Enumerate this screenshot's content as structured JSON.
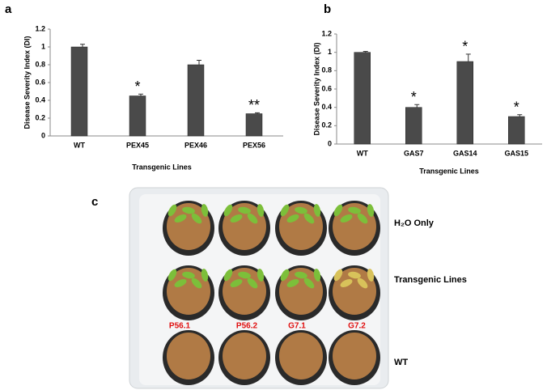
{
  "panels": [
    "a",
    "b",
    "c"
  ],
  "chart_data": [
    {
      "type": "bar",
      "y_label": "Disease Severity Index (DI)",
      "x_label": "Transgenic Lines",
      "categories": [
        "WT",
        "PEX45",
        "PEX46",
        "PEX56"
      ],
      "values": [
        1.0,
        0.45,
        0.8,
        0.25
      ],
      "errors": [
        0.03,
        0.02,
        0.05,
        0.01
      ],
      "annotations": [
        null,
        "*",
        null,
        "**"
      ],
      "color": "#4a4a4a",
      "ylim": [
        0,
        1.2
      ],
      "yticks": [
        0,
        0.2,
        0.4,
        0.6,
        0.8,
        1,
        1.2
      ]
    },
    {
      "type": "bar",
      "y_label": "Disease Severity Index (DI)",
      "x_label": "Transgenic Lines",
      "categories": [
        "WT",
        "GAS7",
        "GAS14",
        "GAS15"
      ],
      "values": [
        1.0,
        0.4,
        0.9,
        0.3
      ],
      "errors": [
        0.01,
        0.03,
        0.08,
        0.02
      ],
      "annotations": [
        null,
        "*",
        "*",
        "*"
      ],
      "color": "#4a4a4a",
      "ylim": [
        0,
        1.2
      ],
      "yticks": [
        0,
        0.2,
        0.4,
        0.6,
        0.8,
        1,
        1.2
      ]
    }
  ],
  "photo": {
    "row_labels": [
      "H₂O Only",
      "Transgenic Lines",
      "WT"
    ],
    "pot_labels": [
      "P56.1",
      "P56.2",
      "G7.1",
      "G7.2"
    ]
  }
}
